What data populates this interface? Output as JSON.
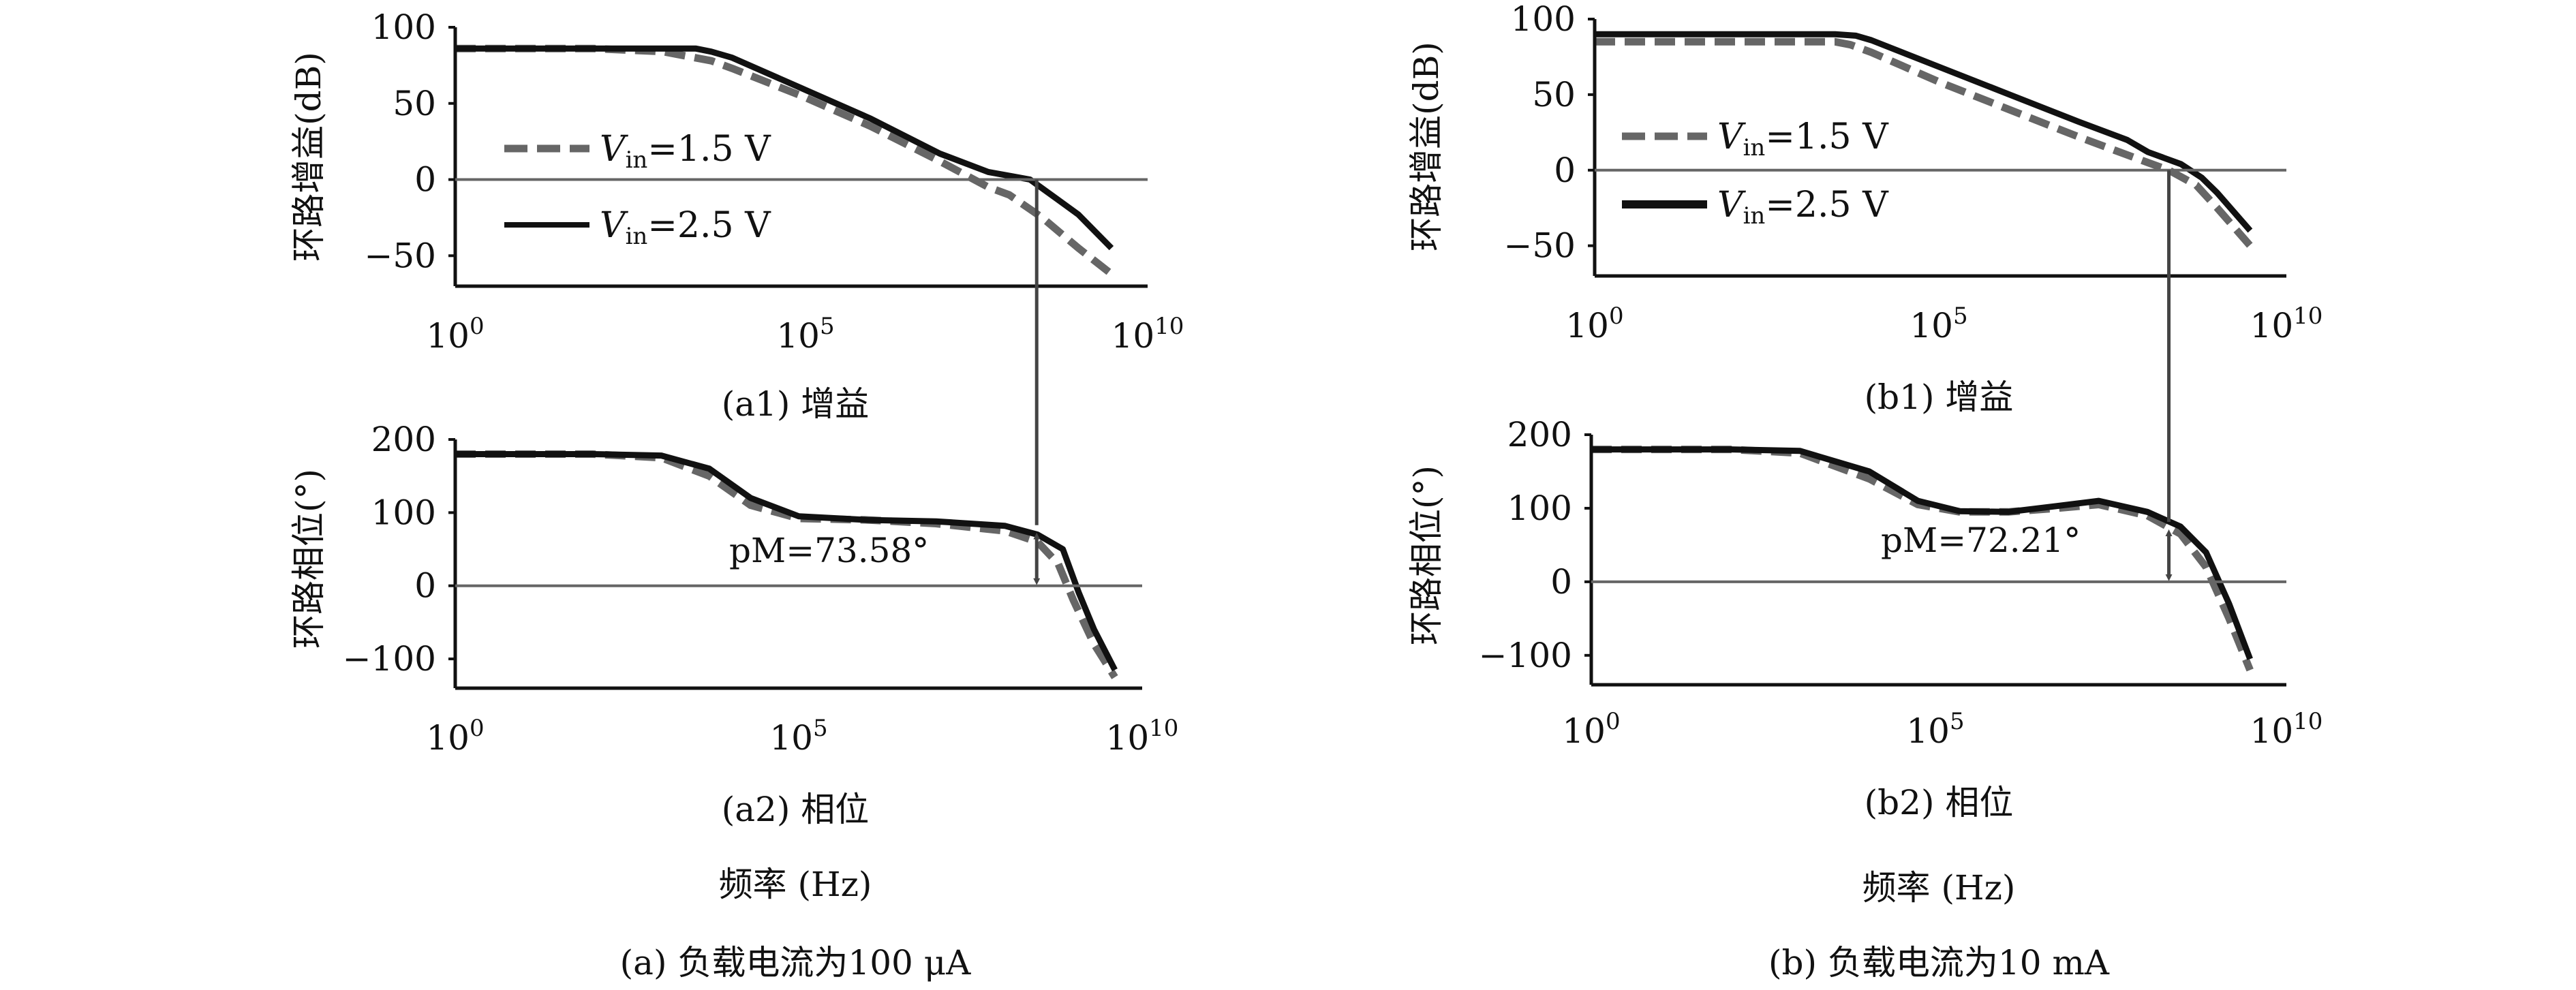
{
  "colors": {
    "series_1p5": "#666666",
    "series_2p5": "#111111",
    "axis": "#111111",
    "zero_line": "#666666",
    "marker": "#444444"
  },
  "x_ticks": {
    "t0_base": "10",
    "t0_exp": "0",
    "t5_base": "10",
    "t5_exp": "5",
    "t10_base": "10",
    "t10_exp": "10"
  },
  "legend": {
    "a": {
      "v": "V",
      "sub": "in",
      "rest": "=1.5 V"
    },
    "b": {
      "v": "V",
      "sub": "in",
      "rest": "=2.5 V"
    }
  },
  "group_a": {
    "gain_caption": "(a1) 增益",
    "phase_caption": "(a2) 相位",
    "freq_label": "频率 (Hz)",
    "group_caption": "(a) 负载电流为100 μA",
    "pm_label": "pM=73.58°"
  },
  "group_b": {
    "gain_caption": "(b1) 增益",
    "phase_caption": "(b2) 相位",
    "freq_label": "频率 (Hz)",
    "group_caption": "(b) 负载电流为10 mA",
    "pm_label": "pM=72.21°"
  },
  "chart_data": [
    {
      "type": "line",
      "id": "a1",
      "ylabel": "环路增益(dB)",
      "x_scale": "log",
      "xlim": [
        1,
        10000000000
      ],
      "ylim": [
        -70,
        100
      ],
      "yticks": [
        100,
        50,
        0,
        -50
      ],
      "series": [
        {
          "name": "Vin=1.5 V",
          "style": "dashed",
          "points": [
            [
              1,
              86
            ],
            [
              10,
              86
            ],
            [
              100,
              86
            ],
            [
              1000,
              84
            ],
            [
              5000,
              78
            ],
            [
              10000,
              73
            ],
            [
              100000,
              55
            ],
            [
              1000000,
              35
            ],
            [
              10000000,
              12
            ],
            [
              50000000,
              -5
            ],
            [
              100000000,
              -10
            ],
            [
              300000000,
              -25
            ],
            [
              1000000000,
              -45
            ],
            [
              3000000000,
              -62
            ]
          ]
        },
        {
          "name": "Vin=2.5 V",
          "style": "solid",
          "points": [
            [
              1,
              86
            ],
            [
              10,
              86
            ],
            [
              100,
              86
            ],
            [
              3000,
              86
            ],
            [
              5000,
              84
            ],
            [
              10000,
              80
            ],
            [
              100000,
              60
            ],
            [
              1000000,
              40
            ],
            [
              10000000,
              17
            ],
            [
              50000000,
              5
            ],
            [
              200000000,
              0
            ],
            [
              500000000,
              -13
            ],
            [
              1000000000,
              -23
            ],
            [
              3000000000,
              -45
            ]
          ]
        }
      ],
      "marker_x": 250000000
    },
    {
      "type": "line",
      "id": "a2",
      "ylabel": "环路相位(°)",
      "x_scale": "log",
      "xlim": [
        1,
        10000000000
      ],
      "ylim": [
        -140,
        200
      ],
      "yticks": [
        200,
        100,
        0,
        -100
      ],
      "series": [
        {
          "name": "Vin=1.5 V",
          "style": "dashed",
          "points": [
            [
              1,
              180
            ],
            [
              100,
              180
            ],
            [
              1000,
              175
            ],
            [
              5000,
              150
            ],
            [
              20000,
              110
            ],
            [
              100000,
              92
            ],
            [
              1000000,
              90
            ],
            [
              10000000,
              85
            ],
            [
              100000000,
              75
            ],
            [
              300000000,
              60
            ],
            [
              600000000,
              30
            ],
            [
              1000000000,
              -20
            ],
            [
              2000000000,
              -80
            ],
            [
              4000000000,
              -125
            ]
          ]
        },
        {
          "name": "Vin=2.5 V",
          "style": "solid",
          "points": [
            [
              1,
              180
            ],
            [
              100,
              180
            ],
            [
              1000,
              178
            ],
            [
              5000,
              160
            ],
            [
              20000,
              120
            ],
            [
              100000,
              95
            ],
            [
              1000000,
              90
            ],
            [
              10000000,
              88
            ],
            [
              100000000,
              82
            ],
            [
              300000000,
              70
            ],
            [
              700000000,
              50
            ],
            [
              1200000000,
              -10
            ],
            [
              2000000000,
              -60
            ],
            [
              4000000000,
              -115
            ]
          ]
        }
      ],
      "marker_x": 250000000,
      "marker_y": 73.58
    },
    {
      "type": "line",
      "id": "b1",
      "ylabel": "环路增益(dB)",
      "x_scale": "log",
      "xlim": [
        1,
        10000000000
      ],
      "ylim": [
        -70,
        100
      ],
      "yticks": [
        100,
        50,
        0,
        -50
      ],
      "series": [
        {
          "name": "Vin=1.5 V",
          "style": "dashed",
          "points": [
            [
              1,
              85
            ],
            [
              100,
              85
            ],
            [
              3000,
              85
            ],
            [
              5000,
              83
            ],
            [
              10000,
              78
            ],
            [
              100000,
              58
            ],
            [
              1000000,
              40
            ],
            [
              10000000,
              22
            ],
            [
              100000000,
              5
            ],
            [
              200000000,
              0
            ],
            [
              500000000,
              -10
            ],
            [
              1000000000,
              -25
            ],
            [
              3000000000,
              -50
            ]
          ]
        },
        {
          "name": "Vin=2.5 V",
          "style": "solid",
          "points": [
            [
              1,
              90
            ],
            [
              100,
              90
            ],
            [
              3000,
              90
            ],
            [
              6000,
              89
            ],
            [
              10000,
              86
            ],
            [
              100000,
              68
            ],
            [
              1000000,
              50
            ],
            [
              10000000,
              32
            ],
            [
              50000000,
              20
            ],
            [
              100000000,
              12
            ],
            [
              300000000,
              4
            ],
            [
              600000000,
              -5
            ],
            [
              1000000000,
              -15
            ],
            [
              3000000000,
              -40
            ]
          ]
        }
      ],
      "marker_x": 200000000
    },
    {
      "type": "line",
      "id": "b2",
      "ylabel": "环路相位(°)",
      "x_scale": "log",
      "xlim": [
        1,
        10000000000
      ],
      "ylim": [
        -140,
        200
      ],
      "yticks": [
        200,
        100,
        0,
        -100
      ],
      "series": [
        {
          "name": "Vin=1.5 V",
          "style": "dashed",
          "points": [
            [
              1,
              180
            ],
            [
              100,
              180
            ],
            [
              1000,
              175
            ],
            [
              10000,
              140
            ],
            [
              50000,
              105
            ],
            [
              200000,
              95
            ],
            [
              1000000,
              95
            ],
            [
              5000000,
              100
            ],
            [
              20000000,
              105
            ],
            [
              100000000,
              90
            ],
            [
              300000000,
              65
            ],
            [
              700000000,
              20
            ],
            [
              1500000000,
              -50
            ],
            [
              3000000000,
              -120
            ]
          ]
        },
        {
          "name": "Vin=2.5 V",
          "style": "solid",
          "points": [
            [
              1,
              180
            ],
            [
              100,
              180
            ],
            [
              1000,
              178
            ],
            [
              10000,
              150
            ],
            [
              50000,
              110
            ],
            [
              200000,
              96
            ],
            [
              1000000,
              95
            ],
            [
              5000000,
              103
            ],
            [
              20000000,
              110
            ],
            [
              100000000,
              95
            ],
            [
              300000000,
              75
            ],
            [
              700000000,
              40
            ],
            [
              1500000000,
              -30
            ],
            [
              3000000000,
              -105
            ]
          ]
        }
      ],
      "marker_x": 200000000,
      "marker_y": 72.21
    }
  ]
}
